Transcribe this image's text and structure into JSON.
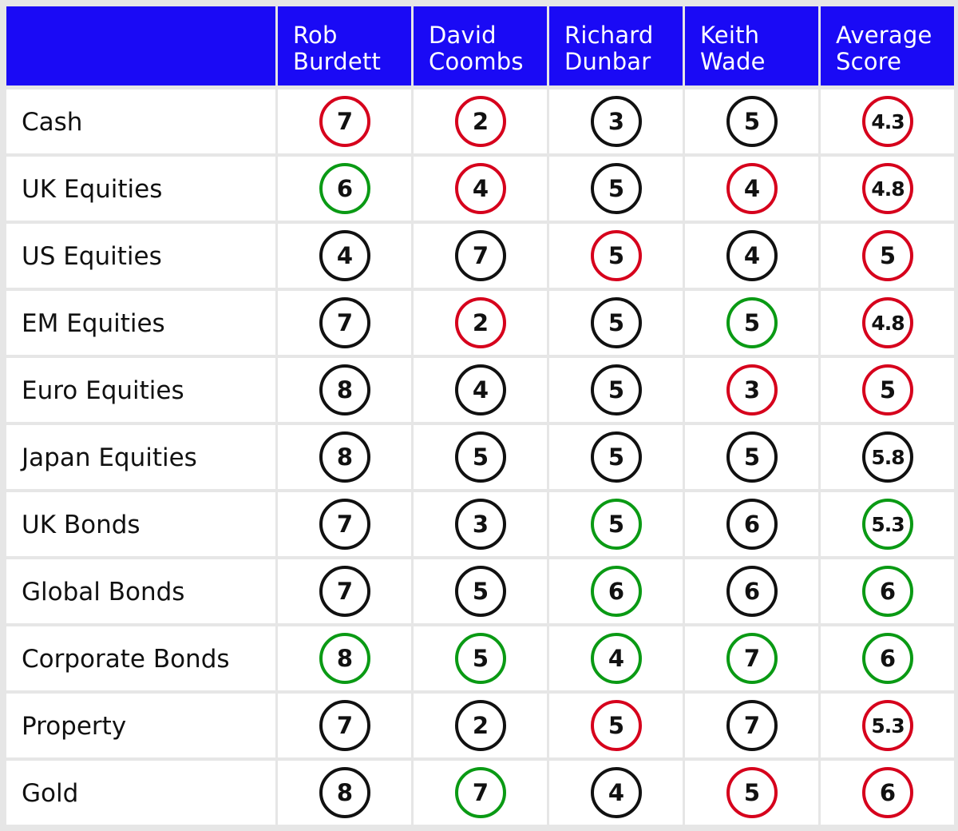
{
  "colors": {
    "header_bg": "#1a0af5",
    "header_text": "#ffffff",
    "row_bg": "#ffffff",
    "gridline": "#e6e6e6",
    "neutral": "#111111",
    "negative": "#d6001c",
    "positive": "#0a9a14"
  },
  "chart_data": {
    "type": "table",
    "columns": [
      "Rob Burdett",
      "David Coombs",
      "Richard Dunbar",
      "Keith Wade",
      "Average Score"
    ],
    "header_lines": [
      [
        "Rob",
        "Burdett"
      ],
      [
        "David",
        "Coombs"
      ],
      [
        "Richard",
        "Dunbar"
      ],
      [
        "Keith",
        "Wade"
      ],
      [
        "Average",
        "Score"
      ]
    ],
    "rows": [
      {
        "label": "Cash",
        "values": [
          "7",
          "2",
          "3",
          "5",
          "4.3"
        ],
        "ring": [
          "negative",
          "negative",
          "neutral",
          "neutral",
          "negative"
        ]
      },
      {
        "label": "UK Equities",
        "values": [
          "6",
          "4",
          "5",
          "4",
          "4.8"
        ],
        "ring": [
          "positive",
          "negative",
          "neutral",
          "negative",
          "negative"
        ]
      },
      {
        "label": "US Equities",
        "values": [
          "4",
          "7",
          "5",
          "4",
          "5"
        ],
        "ring": [
          "neutral",
          "neutral",
          "negative",
          "neutral",
          "negative"
        ]
      },
      {
        "label": "EM Equities",
        "values": [
          "7",
          "2",
          "5",
          "5",
          "4.8"
        ],
        "ring": [
          "neutral",
          "negative",
          "neutral",
          "positive",
          "negative"
        ]
      },
      {
        "label": "Euro Equities",
        "values": [
          "8",
          "4",
          "5",
          "3",
          "5"
        ],
        "ring": [
          "neutral",
          "neutral",
          "neutral",
          "negative",
          "negative"
        ]
      },
      {
        "label": "Japan Equities",
        "values": [
          "8",
          "5",
          "5",
          "5",
          "5.8"
        ],
        "ring": [
          "neutral",
          "neutral",
          "neutral",
          "neutral",
          "neutral"
        ]
      },
      {
        "label": "UK Bonds",
        "values": [
          "7",
          "3",
          "5",
          "6",
          "5.3"
        ],
        "ring": [
          "neutral",
          "neutral",
          "positive",
          "neutral",
          "positive"
        ]
      },
      {
        "label": "Global Bonds",
        "values": [
          "7",
          "5",
          "6",
          "6",
          "6"
        ],
        "ring": [
          "neutral",
          "neutral",
          "positive",
          "neutral",
          "positive"
        ]
      },
      {
        "label": "Corporate Bonds",
        "values": [
          "8",
          "5",
          "4",
          "7",
          "6"
        ],
        "ring": [
          "positive",
          "positive",
          "positive",
          "positive",
          "positive"
        ]
      },
      {
        "label": "Property",
        "values": [
          "7",
          "2",
          "5",
          "7",
          "5.3"
        ],
        "ring": [
          "neutral",
          "neutral",
          "negative",
          "neutral",
          "negative"
        ]
      },
      {
        "label": "Gold",
        "values": [
          "8",
          "7",
          "4",
          "5",
          "6"
        ],
        "ring": [
          "neutral",
          "positive",
          "neutral",
          "negative",
          "negative"
        ]
      }
    ]
  }
}
